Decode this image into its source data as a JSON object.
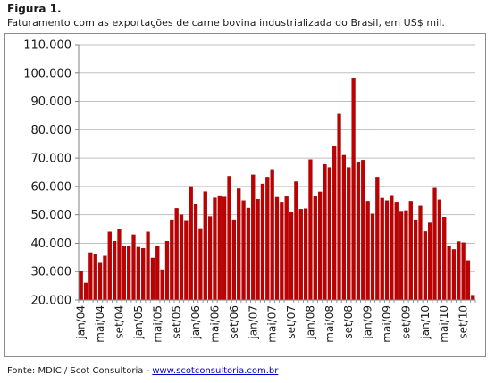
{
  "figure": {
    "label": "Figura 1.",
    "title": "Faturamento  com as exportações  de carne bovina industrializada  do Brasil, em US$ mil."
  },
  "source": {
    "prefix": "Fonte: MDIC / Scot Consultoria - ",
    "link": "www.scotconsultoria.com.br"
  },
  "colors": {
    "bar": "#c00000",
    "bar_edge": "#8b0000",
    "grid": "#bfbfbf",
    "axis": "#808080"
  },
  "chart_data": {
    "type": "bar",
    "title": "",
    "xlabel": "",
    "ylabel": "",
    "ylim": [
      20000,
      110000
    ],
    "yticks": [
      20000,
      30000,
      40000,
      50000,
      60000,
      70000,
      80000,
      90000,
      100000,
      110000
    ],
    "ytick_labels": [
      "20.000",
      "30.000",
      "40.000",
      "50.000",
      "60.000",
      "70.000",
      "80.000",
      "90.000",
      "100.000",
      "110.000"
    ],
    "grid": true,
    "legend": "none",
    "xtick_labels": [
      {
        "index": 0,
        "label": "jan/04"
      },
      {
        "index": 4,
        "label": "mai/04"
      },
      {
        "index": 8,
        "label": "set/04"
      },
      {
        "index": 12,
        "label": "jan/05"
      },
      {
        "index": 16,
        "label": "mai/05"
      },
      {
        "index": 20,
        "label": "set/05"
      },
      {
        "index": 24,
        "label": "jan/06"
      },
      {
        "index": 28,
        "label": "mai/06"
      },
      {
        "index": 32,
        "label": "set/06"
      },
      {
        "index": 36,
        "label": "jan/07"
      },
      {
        "index": 40,
        "label": "mai/07"
      },
      {
        "index": 44,
        "label": "set/07"
      },
      {
        "index": 48,
        "label": "jan/08"
      },
      {
        "index": 52,
        "label": "mai/08"
      },
      {
        "index": 56,
        "label": "set/08"
      },
      {
        "index": 60,
        "label": "jan/09"
      },
      {
        "index": 64,
        "label": "mai/09"
      },
      {
        "index": 68,
        "label": "set/09"
      },
      {
        "index": 72,
        "label": "jan/10"
      },
      {
        "index": 76,
        "label": "mai/10"
      },
      {
        "index": 80,
        "label": "set/10"
      }
    ],
    "values": [
      30000,
      26000,
      36700,
      36000,
      33000,
      35500,
      44000,
      40700,
      45000,
      38900,
      38900,
      43000,
      38600,
      38200,
      44000,
      34800,
      39100,
      30700,
      40700,
      48300,
      52300,
      50000,
      48100,
      60000,
      53800,
      45200,
      58200,
      49400,
      56000,
      56800,
      56300,
      63600,
      48300,
      59200,
      55000,
      52400,
      64100,
      55500,
      60900,
      63300,
      66000,
      56200,
      54500,
      56400,
      51000,
      61700,
      52000,
      52200,
      69500,
      56500,
      58100,
      67800,
      66700,
      74300,
      85500,
      71000,
      66700,
      98300,
      68700,
      69300,
      54800,
      50300,
      63300,
      55900,
      55000,
      56900,
      54500,
      51300,
      51500,
      54800,
      48300,
      53100,
      44100,
      47200,
      59400,
      55300,
      49200,
      38900,
      37800,
      40600,
      40200,
      33900,
      21700
    ]
  }
}
